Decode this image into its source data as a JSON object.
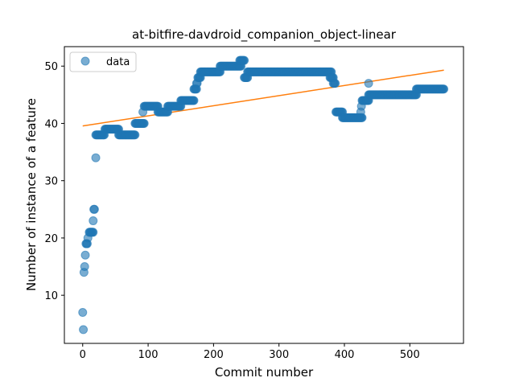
{
  "chart_data": {
    "type": "scatter",
    "title": "at-bitfire-davdroid_companion_object-linear",
    "xlabel": "Commit number",
    "ylabel": "Number of instance of a feature",
    "xlim": [
      -28,
      582
    ],
    "ylim": [
      1.6,
      53.4
    ],
    "xticks": [
      0,
      100,
      200,
      300,
      400,
      500
    ],
    "yticks": [
      10,
      20,
      30,
      40,
      50
    ],
    "grid": false,
    "legend_position": "top-left",
    "colors": {
      "scatter": "#1f77b4",
      "fit": "#ff7f0e"
    },
    "series": [
      {
        "name": "data",
        "kind": "points",
        "segments": [
          {
            "x0": 0,
            "x1": 0,
            "y": 7
          },
          {
            "x0": 1,
            "x1": 1,
            "y": 4
          },
          {
            "x0": 2,
            "x1": 2,
            "y": 14
          },
          {
            "x0": 3,
            "x1": 3,
            "y": 15
          },
          {
            "x0": 4,
            "x1": 4,
            "y": 17
          },
          {
            "x0": 5,
            "x1": 7,
            "y": 19
          },
          {
            "x0": 8,
            "x1": 8,
            "y": 20
          },
          {
            "x0": 10,
            "x1": 16,
            "y": 21
          },
          {
            "x0": 16,
            "x1": 16,
            "y": 23
          },
          {
            "x0": 17,
            "x1": 18,
            "y": 25
          },
          {
            "x0": 20,
            "x1": 20,
            "y": 34
          },
          {
            "x0": 20,
            "x1": 33,
            "y": 38
          },
          {
            "x0": 34,
            "x1": 55,
            "y": 39
          },
          {
            "x0": 55,
            "x1": 80,
            "y": 38
          },
          {
            "x0": 80,
            "x1": 94,
            "y": 40
          },
          {
            "x0": 92,
            "x1": 92,
            "y": 42
          },
          {
            "x0": 94,
            "x1": 115,
            "y": 43
          },
          {
            "x0": 115,
            "x1": 130,
            "y": 42
          },
          {
            "x0": 130,
            "x1": 150,
            "y": 43
          },
          {
            "x0": 150,
            "x1": 170,
            "y": 44
          },
          {
            "x0": 170,
            "x1": 174,
            "y": 46
          },
          {
            "x0": 174,
            "x1": 175,
            "y": 47
          },
          {
            "x0": 176,
            "x1": 180,
            "y": 48
          },
          {
            "x0": 180,
            "x1": 210,
            "y": 49
          },
          {
            "x0": 210,
            "x1": 242,
            "y": 50
          },
          {
            "x0": 240,
            "x1": 247,
            "y": 51
          },
          {
            "x0": 247,
            "x1": 252,
            "y": 48
          },
          {
            "x0": 252,
            "x1": 380,
            "y": 49
          },
          {
            "x0": 378,
            "x1": 383,
            "y": 48
          },
          {
            "x0": 383,
            "x1": 386,
            "y": 47
          },
          {
            "x0": 387,
            "x1": 397,
            "y": 42
          },
          {
            "x0": 397,
            "x1": 427,
            "y": 41
          },
          {
            "x0": 425,
            "x1": 425,
            "y": 42
          },
          {
            "x0": 426,
            "x1": 426,
            "y": 43
          },
          {
            "x0": 427,
            "x1": 437,
            "y": 44
          },
          {
            "x0": 437,
            "x1": 437,
            "y": 47
          },
          {
            "x0": 437,
            "x1": 510,
            "y": 45
          },
          {
            "x0": 510,
            "x1": 552,
            "y": 46
          }
        ]
      },
      {
        "name": "",
        "kind": "line",
        "x": [
          0,
          552
        ],
        "y": [
          39.55,
          49.3
        ]
      }
    ]
  }
}
